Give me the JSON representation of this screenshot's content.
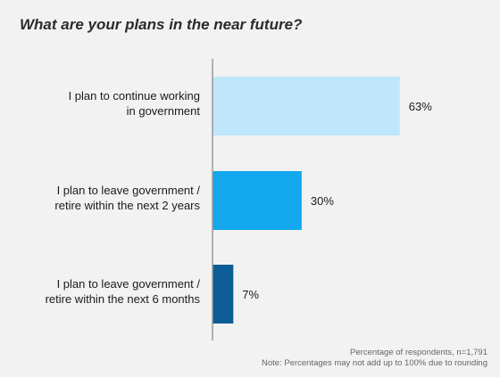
{
  "title": "What are your plans in the near future?",
  "notes": {
    "line1": "Percentage of respondents, n=1,791",
    "line2": "Note: Percentages may not add up to 100% due to rounding"
  },
  "chart_data": {
    "type": "bar",
    "orientation": "horizontal",
    "title": "What are your plans in the near future?",
    "categories": [
      [
        "I plan to continue working",
        "in government"
      ],
      [
        "I plan to leave government /",
        "retire within the next 2 years"
      ],
      [
        "I plan to leave government /",
        "retire within the next 6 months"
      ]
    ],
    "values": [
      63,
      30,
      7
    ],
    "value_labels": [
      "63%",
      "30%",
      "7%"
    ],
    "colors": [
      "#bfe6fb",
      "#13a8ee",
      "#0c5d96"
    ],
    "xlim": [
      0,
      100
    ],
    "grid": false,
    "legend": "none"
  }
}
